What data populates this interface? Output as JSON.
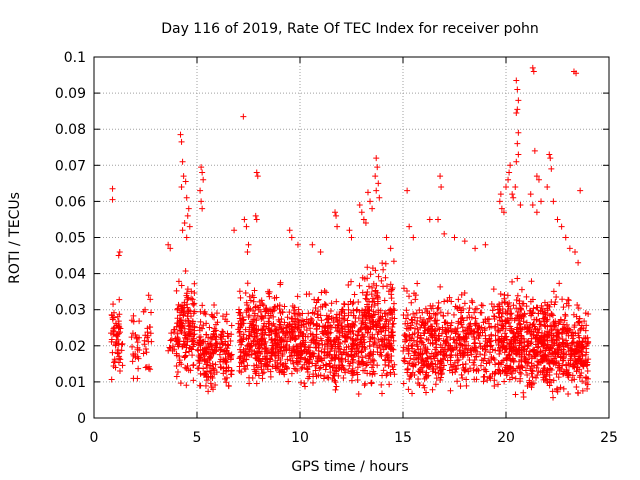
{
  "chart_data": {
    "type": "scatter",
    "title": "Day 116 of 2019, Rate Of TEC Index for receiver pohn",
    "xlabel": "GPS time / hours",
    "ylabel": "ROTI / TECUs",
    "xlim": [
      0,
      25
    ],
    "ylim": [
      0,
      0.1
    ],
    "xticks": [
      0,
      5,
      10,
      15,
      20,
      25
    ],
    "xtick_labels": [
      "0",
      "5",
      "10",
      "15",
      "20",
      "25"
    ],
    "yticks": [
      0,
      0.01,
      0.02,
      0.03,
      0.04,
      0.05,
      0.06,
      0.07,
      0.08,
      0.09,
      0.1
    ],
    "ytick_labels": [
      "0",
      "0.01",
      "0.02",
      "0.03",
      "0.04",
      "0.05",
      "0.06",
      "0.07",
      "0.08",
      "0.09",
      "0.1"
    ],
    "grid": true,
    "marker": "+",
    "marker_color": "#ff0000",
    "series": [
      {
        "name": "ROTI",
        "clusters": [
          {
            "x": [
              0.8,
              1.4
            ],
            "ymin": 0.008,
            "ymax": 0.037,
            "n": 60
          },
          {
            "x": [
              1.8,
              2.2
            ],
            "ymin": 0.008,
            "ymax": 0.033,
            "n": 25
          },
          {
            "x": [
              2.4,
              2.8
            ],
            "ymin": 0.01,
            "ymax": 0.039,
            "n": 25
          },
          {
            "x": [
              3.6,
              4.0
            ],
            "ymin": 0.015,
            "ymax": 0.03,
            "n": 15
          },
          {
            "x": [
              4.0,
              4.9
            ],
            "ymin": 0.007,
            "ymax": 0.045,
            "n": 150
          },
          {
            "x": [
              5.0,
              6.0
            ],
            "ymin": 0.006,
            "ymax": 0.035,
            "n": 140
          },
          {
            "x": [
              6.1,
              6.7
            ],
            "ymin": 0.006,
            "ymax": 0.032,
            "n": 70
          },
          {
            "x": [
              7.0,
              8.0
            ],
            "ymin": 0.006,
            "ymax": 0.04,
            "n": 160
          },
          {
            "x": [
              8.0,
              10.0
            ],
            "ymin": 0.006,
            "ymax": 0.04,
            "n": 320
          },
          {
            "x": [
              10.0,
              12.0
            ],
            "ymin": 0.005,
            "ymax": 0.04,
            "n": 300
          },
          {
            "x": [
              12.0,
              13.0
            ],
            "ymin": 0.005,
            "ymax": 0.042,
            "n": 150
          },
          {
            "x": [
              13.0,
              14.6
            ],
            "ymin": 0.005,
            "ymax": 0.048,
            "n": 280
          },
          {
            "x": [
              15.0,
              17.0
            ],
            "ymin": 0.004,
            "ymax": 0.04,
            "n": 280
          },
          {
            "x": [
              17.0,
              19.5
            ],
            "ymin": 0.005,
            "ymax": 0.04,
            "n": 300
          },
          {
            "x": [
              19.6,
              21.5
            ],
            "ymin": 0.004,
            "ymax": 0.042,
            "n": 360
          },
          {
            "x": [
              21.5,
              23.0
            ],
            "ymin": 0.004,
            "ymax": 0.04,
            "n": 280
          },
          {
            "x": [
              23.0,
              24.0
            ],
            "ymin": 0.005,
            "ymax": 0.035,
            "n": 160
          }
        ],
        "points": [
          [
            0.9,
            0.0635
          ],
          [
            0.9,
            0.0605
          ],
          [
            1.2,
            0.045
          ],
          [
            1.25,
            0.046
          ],
          [
            3.6,
            0.048
          ],
          [
            3.7,
            0.047
          ],
          [
            4.2,
            0.0785
          ],
          [
            4.25,
            0.0765
          ],
          [
            4.3,
            0.071
          ],
          [
            4.35,
            0.067
          ],
          [
            4.25,
            0.064
          ],
          [
            4.45,
            0.0655
          ],
          [
            4.5,
            0.061
          ],
          [
            4.6,
            0.058
          ],
          [
            4.55,
            0.056
          ],
          [
            4.4,
            0.054
          ],
          [
            4.65,
            0.053
          ],
          [
            4.3,
            0.052
          ],
          [
            4.5,
            0.05
          ],
          [
            5.2,
            0.0695
          ],
          [
            5.25,
            0.068
          ],
          [
            5.3,
            0.066
          ],
          [
            5.15,
            0.063
          ],
          [
            5.2,
            0.06
          ],
          [
            5.25,
            0.058
          ],
          [
            6.8,
            0.052
          ],
          [
            7.25,
            0.0835
          ],
          [
            7.3,
            0.055
          ],
          [
            7.4,
            0.053
          ],
          [
            7.5,
            0.048
          ],
          [
            7.45,
            0.046
          ],
          [
            7.9,
            0.068
          ],
          [
            7.95,
            0.067
          ],
          [
            7.85,
            0.056
          ],
          [
            7.9,
            0.055
          ],
          [
            9.5,
            0.052
          ],
          [
            9.6,
            0.05
          ],
          [
            9.9,
            0.048
          ],
          [
            10.6,
            0.048
          ],
          [
            11.0,
            0.046
          ],
          [
            11.7,
            0.057
          ],
          [
            11.75,
            0.056
          ],
          [
            11.8,
            0.053
          ],
          [
            12.4,
            0.052
          ],
          [
            12.5,
            0.05
          ],
          [
            12.9,
            0.059
          ],
          [
            13.0,
            0.057
          ],
          [
            13.1,
            0.055
          ],
          [
            13.2,
            0.054
          ],
          [
            13.3,
            0.0625
          ],
          [
            13.4,
            0.06
          ],
          [
            13.5,
            0.058
          ],
          [
            13.7,
            0.072
          ],
          [
            13.75,
            0.0695
          ],
          [
            13.65,
            0.067
          ],
          [
            13.8,
            0.065
          ],
          [
            13.7,
            0.063
          ],
          [
            13.85,
            0.061
          ],
          [
            14.2,
            0.05
          ],
          [
            14.4,
            0.047
          ],
          [
            15.2,
            0.063
          ],
          [
            15.3,
            0.053
          ],
          [
            15.5,
            0.05
          ],
          [
            16.3,
            0.055
          ],
          [
            16.8,
            0.067
          ],
          [
            16.85,
            0.064
          ],
          [
            16.7,
            0.055
          ],
          [
            17.0,
            0.051
          ],
          [
            17.5,
            0.05
          ],
          [
            18.0,
            0.049
          ],
          [
            18.5,
            0.047
          ],
          [
            19.0,
            0.048
          ],
          [
            19.7,
            0.06
          ],
          [
            19.8,
            0.058
          ],
          [
            19.75,
            0.062
          ],
          [
            19.9,
            0.057
          ],
          [
            20.0,
            0.064
          ],
          [
            20.1,
            0.066
          ],
          [
            20.15,
            0.068
          ],
          [
            20.3,
            0.062
          ],
          [
            20.2,
            0.07
          ],
          [
            20.5,
            0.0935
          ],
          [
            20.55,
            0.091
          ],
          [
            20.6,
            0.088
          ],
          [
            20.55,
            0.0855
          ],
          [
            20.5,
            0.0845
          ],
          [
            20.6,
            0.079
          ],
          [
            20.55,
            0.076
          ],
          [
            20.6,
            0.073
          ],
          [
            20.5,
            0.071
          ],
          [
            20.45,
            0.064
          ],
          [
            20.35,
            0.061
          ],
          [
            20.7,
            0.059
          ],
          [
            21.3,
            0.097
          ],
          [
            21.35,
            0.096
          ],
          [
            21.4,
            0.074
          ],
          [
            21.5,
            0.067
          ],
          [
            21.6,
            0.066
          ],
          [
            21.2,
            0.062
          ],
          [
            21.3,
            0.059
          ],
          [
            21.5,
            0.057
          ],
          [
            21.7,
            0.06
          ],
          [
            22.1,
            0.073
          ],
          [
            22.15,
            0.072
          ],
          [
            22.2,
            0.069
          ],
          [
            22.0,
            0.064
          ],
          [
            22.3,
            0.06
          ],
          [
            22.5,
            0.055
          ],
          [
            22.7,
            0.053
          ],
          [
            22.9,
            0.05
          ],
          [
            23.1,
            0.047
          ],
          [
            23.3,
            0.096
          ],
          [
            23.4,
            0.0955
          ],
          [
            23.6,
            0.063
          ],
          [
            23.35,
            0.046
          ],
          [
            23.5,
            0.043
          ]
        ]
      }
    ]
  }
}
